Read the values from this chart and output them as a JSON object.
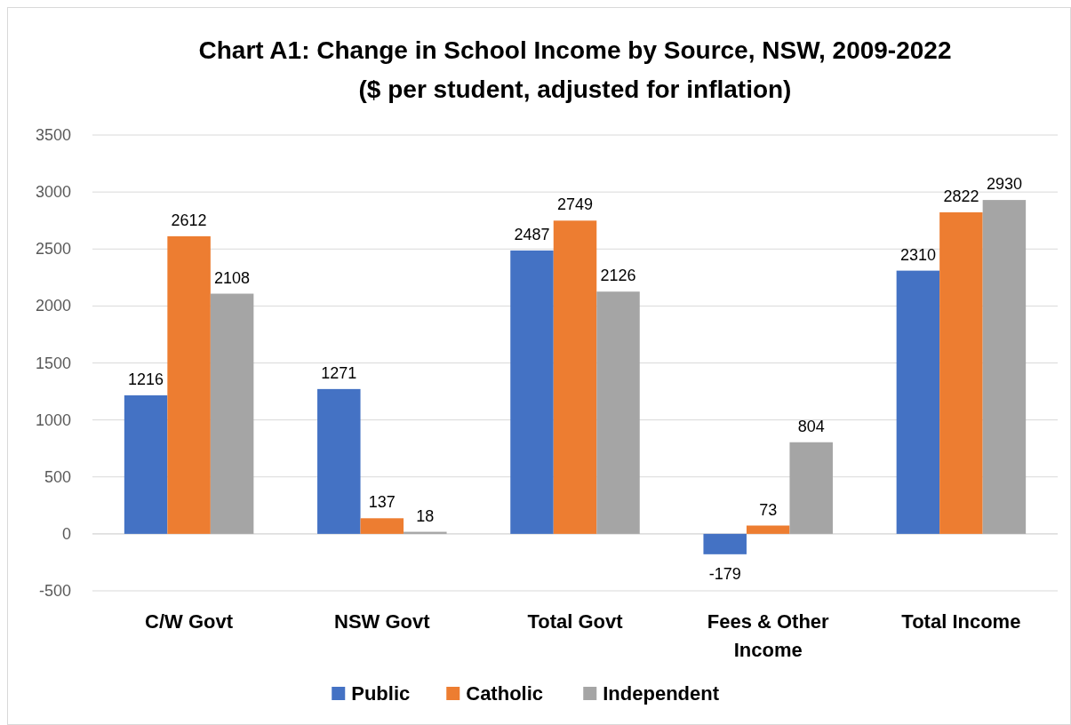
{
  "chart_data": {
    "type": "bar",
    "title": "Chart A1: Change in School Income by Source, NSW, 2009-2022",
    "subtitle": "($ per student, adjusted for inflation)",
    "categories": [
      "C/W Govt",
      "NSW Govt",
      "Total Govt",
      "Fees & Other Income",
      "Total Income"
    ],
    "series": [
      {
        "name": "Public",
        "color": "#4472c4",
        "values": [
          1216,
          1271,
          2487,
          -179,
          2310
        ]
      },
      {
        "name": "Catholic",
        "color": "#ed7d31",
        "values": [
          2612,
          137,
          2749,
          73,
          2822
        ]
      },
      {
        "name": "Independent",
        "color": "#a5a5a5",
        "values": [
          2108,
          18,
          2126,
          804,
          2930
        ]
      }
    ],
    "ylim": [
      -500,
      3500
    ],
    "yticks": [
      -500,
      0,
      500,
      1000,
      1500,
      2000,
      2500,
      3000,
      3500
    ],
    "grid": "y",
    "legend": "bottom",
    "data_labels": true
  }
}
